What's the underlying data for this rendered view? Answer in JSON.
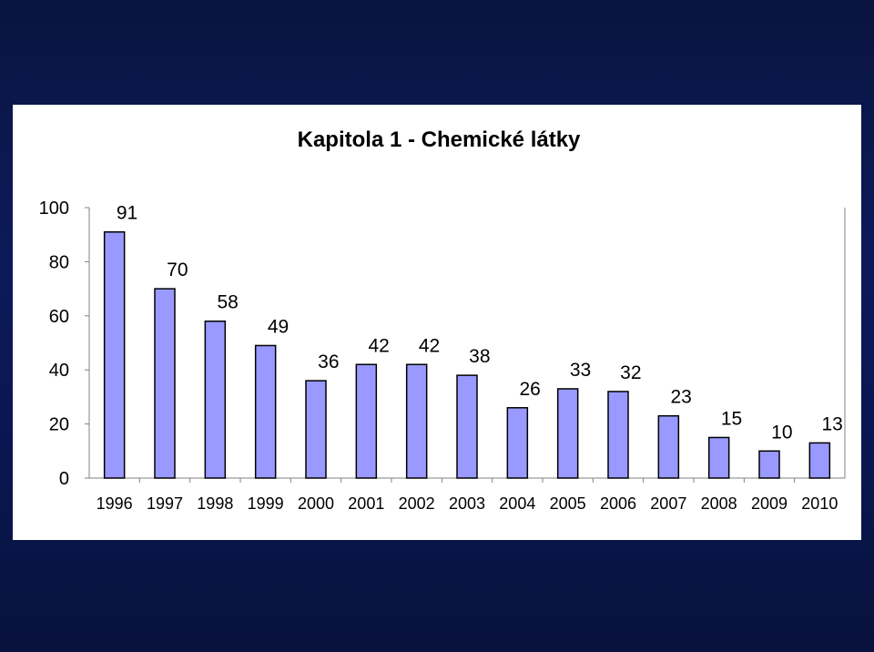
{
  "chart_data": {
    "type": "bar",
    "title": "Kapitola 1 - Chemické látky",
    "categories": [
      "1996",
      "1997",
      "1998",
      "1999",
      "2000",
      "2001",
      "2002",
      "2003",
      "2004",
      "2005",
      "2006",
      "2007",
      "2008",
      "2009",
      "2010"
    ],
    "values": [
      91,
      70,
      58,
      49,
      36,
      42,
      42,
      38,
      26,
      33,
      32,
      23,
      15,
      10,
      13
    ],
    "ylim": [
      0,
      100
    ],
    "yticks": [
      0,
      20,
      40,
      60,
      80,
      100
    ],
    "bar_color": "#9999ff",
    "bar_outline": "#000000",
    "grid": false,
    "legend": "none"
  }
}
